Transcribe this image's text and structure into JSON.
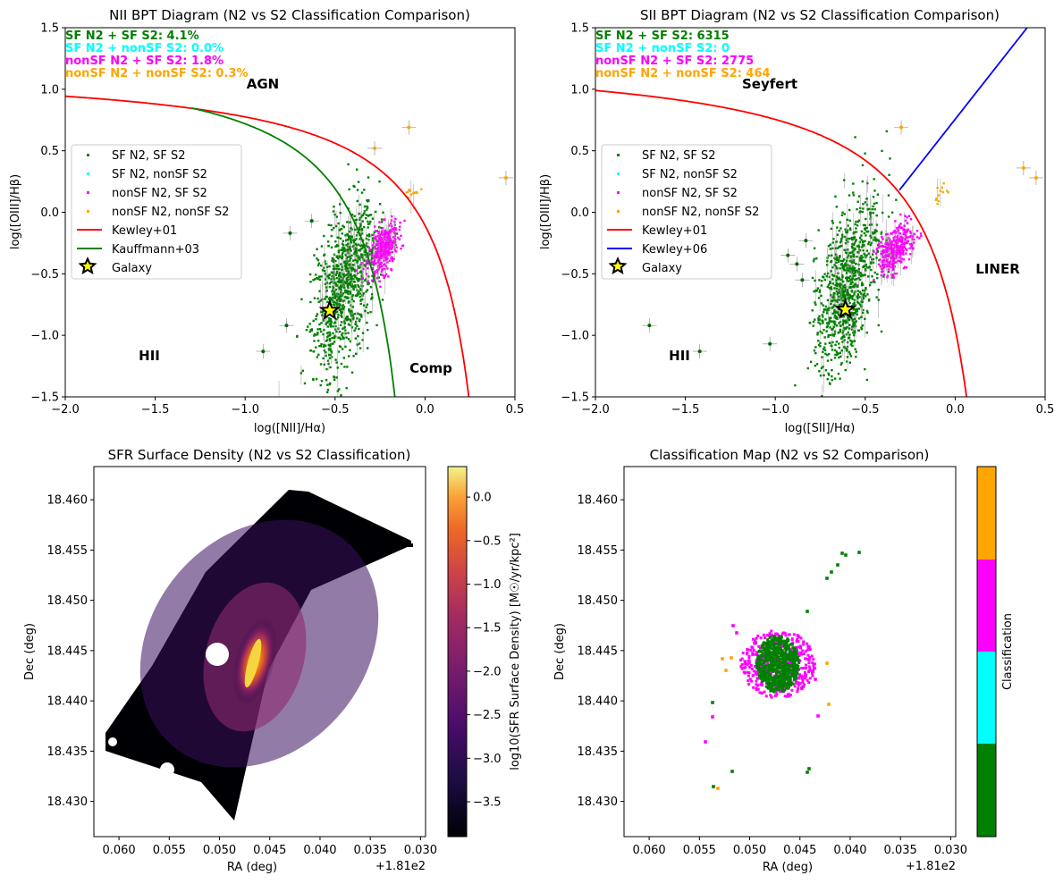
{
  "chart_data": [
    {
      "type": "scatter",
      "title": "NII BPT Diagram (N2 vs S2 Classification Comparison)",
      "xlabel": "log([NII]/Hα)",
      "ylabel": "log([OIII]/Hβ)",
      "xlim": [
        -2.0,
        0.5
      ],
      "ylim": [
        -1.5,
        1.5
      ],
      "xticks": [
        "−2.0",
        "−1.5",
        "−1.0",
        "−0.5",
        "0.0",
        "0.5"
      ],
      "yticks": [
        "−1.5",
        "−1.0",
        "−0.5",
        "0.0",
        "0.5",
        "1.0",
        "1.5"
      ],
      "stats": [
        {
          "text": "SF N2 + SF S2: 4.1%",
          "color": "#008000"
        },
        {
          "text": "SF N2 + nonSF S2: 0.0%",
          "color": "#00ffff"
        },
        {
          "text": "nonSF N2 + SF S2: 1.8%",
          "color": "#ff00ff"
        },
        {
          "text": "nonSF N2 + nonSF S2: 0.3%",
          "color": "#ffa500"
        }
      ],
      "region_labels": [
        "AGN",
        "HII",
        "Comp"
      ],
      "legend": [
        "SF N2, SF S2",
        "SF N2, nonSF S2",
        "nonSF N2, SF S2",
        "nonSF N2, nonSF S2",
        "Kewley+01",
        "Kauffmann+03",
        "Galaxy"
      ],
      "legend_position": "center-left",
      "clusters": [
        {
          "series": "SF N2, SF S2",
          "color": "#008000",
          "center": [
            -0.45,
            -0.6
          ],
          "spread": [
            0.09,
            0.3
          ],
          "count": 900
        },
        {
          "series": "nonSF N2, SF S2",
          "color": "#ff00ff",
          "center": [
            -0.23,
            -0.3
          ],
          "spread": [
            0.04,
            0.09
          ],
          "count": 350
        },
        {
          "series": "nonSF N2, nonSF S2",
          "color": "#ffa500",
          "center": [
            -0.08,
            0.15
          ],
          "spread": [
            0.02,
            0.03
          ],
          "count": 12
        }
      ],
      "outliers": [
        [
          -0.9,
          -1.13
        ],
        [
          -0.77,
          -0.92
        ],
        [
          -0.75,
          -0.17
        ],
        [
          -0.63,
          -0.07
        ],
        [
          -0.28,
          0.52
        ],
        [
          -0.09,
          0.69
        ],
        [
          0.45,
          0.28
        ]
      ],
      "galaxy_point": [
        -0.53,
        -0.8
      ],
      "curves": [
        "Kewley+01",
        "Kauffmann+03"
      ]
    },
    {
      "type": "scatter",
      "title": "SII BPT Diagram (N2 vs S2 Classification Comparison)",
      "xlabel": "log([SII]/Hα)",
      "ylabel": "log([OIII]/Hβ)",
      "xlim": [
        -2.0,
        0.5
      ],
      "ylim": [
        -1.5,
        1.5
      ],
      "xticks": [
        "−2.0",
        "−1.5",
        "−1.0",
        "−0.5",
        "0.0",
        "0.5"
      ],
      "yticks": [
        "−1.5",
        "−1.0",
        "−0.5",
        "0.0",
        "0.5",
        "1.0",
        "1.5"
      ],
      "stats": [
        {
          "text": "SF N2 + SF S2: 6315",
          "color": "#008000"
        },
        {
          "text": "SF N2 + nonSF S2: 0",
          "color": "#00ffff"
        },
        {
          "text": "nonSF N2 + SF S2: 2775",
          "color": "#ff00ff"
        },
        {
          "text": "nonSF N2 + nonSF S2: 464",
          "color": "#ffa500"
        }
      ],
      "region_labels": [
        "Seyfert",
        "HII",
        "LINER"
      ],
      "legend": [
        "SF N2, SF S2",
        "SF N2, nonSF S2",
        "nonSF N2, SF S2",
        "nonSF N2, nonSF S2",
        "Kewley+01",
        "Kewley+06",
        "Galaxy"
      ],
      "legend_position": "center-left",
      "clusters": [
        {
          "series": "SF N2, SF S2",
          "color": "#008000",
          "center": [
            -0.6,
            -0.6
          ],
          "spread": [
            0.09,
            0.3
          ],
          "count": 900
        },
        {
          "series": "nonSF N2, SF S2",
          "color": "#ff00ff",
          "center": [
            -0.33,
            -0.3
          ],
          "spread": [
            0.05,
            0.09
          ],
          "count": 350
        },
        {
          "series": "nonSF N2, nonSF S2",
          "color": "#ffa500",
          "center": [
            -0.1,
            0.15
          ],
          "spread": [
            0.03,
            0.04
          ],
          "count": 12
        }
      ],
      "outliers": [
        [
          -1.7,
          -0.92
        ],
        [
          -1.42,
          -1.13
        ],
        [
          -1.03,
          -1.07
        ],
        [
          -0.93,
          -0.35
        ],
        [
          -0.88,
          -0.42
        ],
        [
          -0.83,
          -0.23
        ],
        [
          -0.85,
          -0.55
        ],
        [
          -0.3,
          0.69
        ],
        [
          0.38,
          0.36
        ],
        [
          0.45,
          0.28
        ]
      ],
      "galaxy_point": [
        -0.61,
        -0.79
      ],
      "curves": [
        "Kewley+01",
        "Kewley+06"
      ]
    },
    {
      "type": "heatmap",
      "title": "SFR Surface Density (N2 vs S2 Classification)",
      "xlabel": "RA (deg)",
      "ylabel": "Dec (deg)",
      "x_offset": "+1.81e2",
      "xlim": [
        0.0625,
        0.0295
      ],
      "ylim": [
        18.4265,
        18.4633
      ],
      "xticks": [
        "0.060",
        "0.055",
        "0.050",
        "0.045",
        "0.040",
        "0.035",
        "0.030"
      ],
      "yticks": [
        "18.430",
        "18.435",
        "18.440",
        "18.445",
        "18.450",
        "18.455",
        "18.460"
      ],
      "colorbar_label": "log10(SFR Surface Density) [M☉/yr/kpc²]",
      "colorbar_range": [
        -3.9,
        0.35
      ],
      "colorbar_ticks": [
        "0.0",
        "−0.5",
        "−1.0",
        "−1.5",
        "−2.0",
        "−2.5",
        "−3.0",
        "−3.5"
      ],
      "colormap": "inferno"
    },
    {
      "type": "scatter",
      "title": "Classification Map (N2 vs S2 Comparison)",
      "xlabel": "RA (deg)",
      "ylabel": "Dec (deg)",
      "x_offset": "+1.81e2",
      "xlim": [
        0.0625,
        0.0295
      ],
      "ylim": [
        18.4265,
        18.4633
      ],
      "xticks": [
        "0.060",
        "0.055",
        "0.050",
        "0.045",
        "0.040",
        "0.035",
        "0.030"
      ],
      "yticks": [
        "18.430",
        "18.435",
        "18.440",
        "18.445",
        "18.450",
        "18.455",
        "18.460"
      ],
      "colorbar_label": "Classification",
      "categories_colors": [
        "#008000",
        "#00ffff",
        "#ff00ff",
        "#ffa500"
      ]
    }
  ]
}
